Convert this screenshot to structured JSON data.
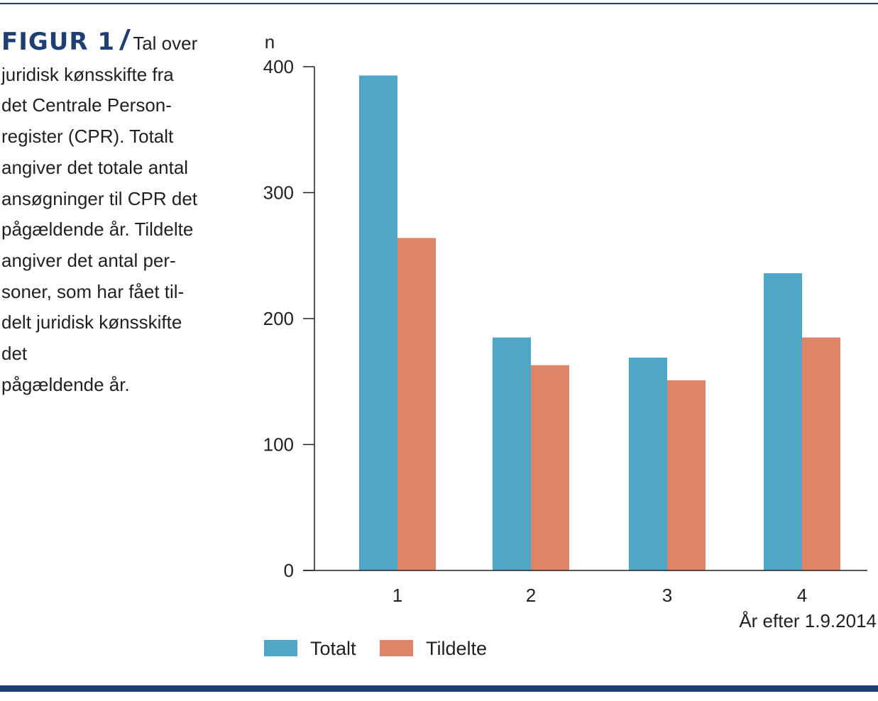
{
  "figure": {
    "label": "FIGUR 1",
    "slash": "/",
    "caption": "Tal over\njuridisk kønsskifte fra\ndet Centrale Person-\nregister (CPR). Totalt\nangiver det totale antal\nansøgninger til CPR det\npågældende år. Tildelte\nangiver det antal per-\nsoner, som har fået til-\ndelt juridisk kønsskifte\ndet\npågældende år."
  },
  "colors": {
    "accent": "#1f3f73",
    "totalt": "#4fa6c6",
    "tildelte": "#de8468",
    "axis": "#231f20"
  },
  "chart_data": {
    "type": "bar",
    "categories": [
      "1",
      "2",
      "3",
      "4"
    ],
    "series": [
      {
        "name": "Totalt",
        "values": [
          393,
          185,
          169,
          236
        ]
      },
      {
        "name": "Tildelte",
        "values": [
          264,
          163,
          151,
          185
        ]
      }
    ],
    "ylabel": "n",
    "xlabel": "År efter 1.9.2014",
    "ylim": [
      0,
      400
    ],
    "yticks": [
      0,
      100,
      200,
      300,
      400
    ],
    "grid": false,
    "legend": "bottom-left"
  }
}
